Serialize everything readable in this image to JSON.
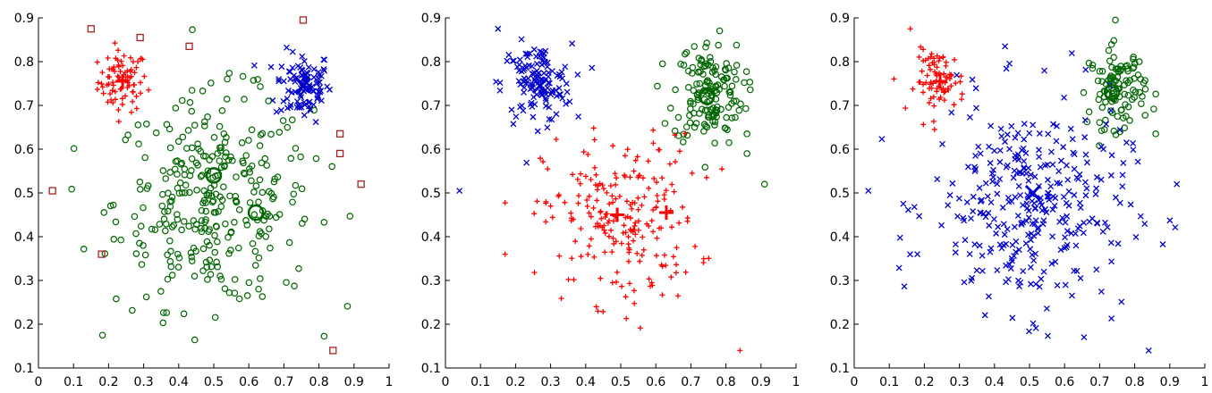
{
  "chart_data": [
    {
      "type": "scatter",
      "xlim": [
        0,
        1
      ],
      "ylim": [
        0.1,
        0.9
      ],
      "xticks": [
        "0",
        "0.1",
        "0.2",
        "0.3",
        "0.4",
        "0.5",
        "0.6",
        "0.7",
        "0.8",
        "0.9",
        "1"
      ],
      "yticks": [
        "0.9",
        "0.8",
        "0.7",
        "0.6",
        "0.5",
        "0.4",
        "0.3",
        "0.2",
        "0.1"
      ],
      "series": [
        {
          "marker": "plus",
          "color": "#ff0000",
          "clusters": [
            {
              "cx": 0.24,
              "cy": 0.755,
              "sx": 0.035,
              "sy": 0.035,
              "n": 80
            }
          ]
        },
        {
          "marker": "cross",
          "color": "#0000cc",
          "clusters": [
            {
              "cx": 0.755,
              "cy": 0.745,
              "sx": 0.04,
              "sy": 0.04,
              "n": 100
            }
          ]
        },
        {
          "marker": "circle",
          "color": "#006600",
          "clusters": [
            {
              "cx": 0.5,
              "cy": 0.48,
              "sx": 0.14,
              "sy": 0.12,
              "n": 320
            }
          ]
        },
        {
          "marker": "square",
          "color": "#aa2222",
          "points": [
            [
              0.04,
              0.505
            ],
            [
              0.15,
              0.875
            ],
            [
              0.18,
              0.36
            ],
            [
              0.29,
              0.855
            ],
            [
              0.43,
              0.835
            ],
            [
              0.755,
              0.895
            ],
            [
              0.84,
              0.14
            ],
            [
              0.86,
              0.635
            ],
            [
              0.86,
              0.59
            ],
            [
              0.92,
              0.52
            ]
          ]
        }
      ],
      "centers": [
        {
          "x": 0.24,
          "y": 0.755,
          "marker": "plus",
          "color": "#ff0000"
        },
        {
          "x": 0.755,
          "y": 0.745,
          "marker": "cross",
          "color": "#0000cc"
        },
        {
          "x": 0.5,
          "y": 0.54,
          "marker": "circle",
          "color": "#006600"
        },
        {
          "x": 0.62,
          "y": 0.455,
          "marker": "circle",
          "color": "#006600"
        }
      ]
    },
    {
      "type": "scatter",
      "xlim": [
        0,
        1
      ],
      "ylim": [
        0.1,
        0.9
      ],
      "xticks": [
        "0",
        "0.1",
        "0.2",
        "0.3",
        "0.4",
        "0.5",
        "0.6",
        "0.7",
        "0.8",
        "0.9",
        "1"
      ],
      "yticks": [
        "0.9",
        "0.8",
        "0.7",
        "0.6",
        "0.5",
        "0.4",
        "0.3",
        "0.2",
        "0.1"
      ],
      "series": [
        {
          "marker": "cross",
          "color": "#0000cc",
          "clusters": [
            {
              "cx": 0.26,
              "cy": 0.75,
              "sx": 0.05,
              "sy": 0.045,
              "n": 130
            }
          ],
          "points": [
            [
              0.04,
              0.505
            ],
            [
              0.15,
              0.875
            ]
          ]
        },
        {
          "marker": "circle",
          "color": "#006600",
          "clusters": [
            {
              "cx": 0.75,
              "cy": 0.73,
              "sx": 0.05,
              "sy": 0.06,
              "n": 150
            }
          ],
          "points": [
            [
              0.91,
              0.52
            ],
            [
              0.86,
              0.635
            ],
            [
              0.86,
              0.59
            ]
          ]
        },
        {
          "marker": "plus",
          "color": "#ff0000",
          "clusters": [
            {
              "cx": 0.5,
              "cy": 0.44,
              "sx": 0.11,
              "sy": 0.095,
              "n": 220
            }
          ],
          "points": [
            [
              0.17,
              0.36
            ],
            [
              0.84,
              0.14
            ]
          ]
        }
      ],
      "centers": [
        {
          "x": 0.27,
          "y": 0.745,
          "marker": "cross",
          "color": "#0000cc"
        },
        {
          "x": 0.745,
          "y": 0.72,
          "marker": "circle",
          "color": "#006600"
        },
        {
          "x": 0.49,
          "y": 0.45,
          "marker": "plus",
          "color": "#ff0000"
        },
        {
          "x": 0.63,
          "y": 0.455,
          "marker": "plus",
          "color": "#ff0000"
        }
      ]
    },
    {
      "type": "scatter",
      "xlim": [
        0,
        1
      ],
      "ylim": [
        0.1,
        0.9
      ],
      "xticks": [
        "0",
        "0.1",
        "0.2",
        "0.3",
        "0.4",
        "0.5",
        "0.6",
        "0.7",
        "0.8",
        "0.9",
        "1"
      ],
      "yticks": [
        "0.9",
        "0.8",
        "0.7",
        "0.6",
        "0.5",
        "0.4",
        "0.3",
        "0.2",
        "0.1"
      ],
      "series": [
        {
          "marker": "plus",
          "color": "#ff0000",
          "clusters": [
            {
              "cx": 0.245,
              "cy": 0.755,
              "sx": 0.035,
              "sy": 0.035,
              "n": 80
            }
          ],
          "points": [
            [
              0.16,
              0.875
            ]
          ]
        },
        {
          "marker": "circle",
          "color": "#006600",
          "clusters": [
            {
              "cx": 0.75,
              "cy": 0.74,
              "sx": 0.04,
              "sy": 0.045,
              "n": 110
            }
          ],
          "points": [
            [
              0.745,
              0.895
            ],
            [
              0.86,
              0.635
            ]
          ]
        },
        {
          "marker": "cross",
          "color": "#0000cc",
          "clusters": [
            {
              "cx": 0.5,
              "cy": 0.47,
              "sx": 0.14,
              "sy": 0.12,
              "n": 330
            }
          ],
          "points": [
            [
              0.04,
              0.505
            ],
            [
              0.18,
              0.36
            ],
            [
              0.92,
              0.52
            ],
            [
              0.84,
              0.14
            ],
            [
              0.43,
              0.835
            ]
          ]
        }
      ],
      "centers": [
        {
          "x": 0.245,
          "y": 0.755,
          "marker": "plus",
          "color": "#ff0000"
        },
        {
          "x": 0.735,
          "y": 0.73,
          "marker": "circle",
          "color": "#006600"
        },
        {
          "x": 0.51,
          "y": 0.5,
          "marker": "cross",
          "color": "#0000cc"
        }
      ]
    }
  ]
}
